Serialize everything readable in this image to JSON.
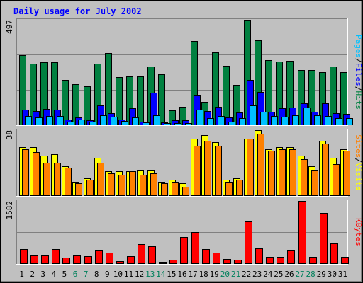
{
  "chart_data": [
    {
      "type": "bar",
      "title": "Daily usage for July 2002",
      "days": [
        "1",
        "2",
        "3",
        "4",
        "5",
        "6",
        "7",
        "8",
        "9",
        "10",
        "11",
        "12",
        "13",
        "14",
        "15",
        "16",
        "17",
        "18",
        "19",
        "20",
        "21",
        "22",
        "23",
        "24",
        "25",
        "26",
        "27",
        "28",
        "29",
        "30",
        "31"
      ],
      "weekend_days": [
        "6",
        "7",
        "13",
        "14",
        "20",
        "21",
        "27",
        "28"
      ],
      "ymax_label": "497",
      "ylim": [
        0,
        497
      ],
      "legend": [
        "Pages",
        "Files",
        "Hits"
      ],
      "legend_separator": "/",
      "series": [
        {
          "name": "Hits",
          "color": "#008040",
          "values": [
            330,
            290,
            295,
            296,
            210,
            190,
            180,
            290,
            338,
            225,
            228,
            230,
            275,
            238,
            68,
            85,
            395,
            108,
            342,
            280,
            188,
            497,
            400,
            305,
            300,
            302,
            257,
            257,
            248,
            275,
            250
          ]
        },
        {
          "name": "Files",
          "color": "#0000ff",
          "values": [
            70,
            65,
            75,
            70,
            25,
            35,
            20,
            90,
            55,
            22,
            76,
            15,
            150,
            10,
            20,
            20,
            140,
            65,
            85,
            35,
            58,
            210,
            155,
            62,
            77,
            82,
            100,
            60,
            100,
            55,
            50
          ]
        },
        {
          "name": "Pages",
          "color": "#00c0ff",
          "values": [
            40,
            35,
            40,
            40,
            15,
            25,
            15,
            45,
            36,
            18,
            32,
            10,
            43,
            6,
            8,
            6,
            70,
            30,
            40,
            15,
            30,
            90,
            60,
            40,
            38,
            45,
            80,
            45,
            40,
            30,
            30
          ]
        }
      ]
    },
    {
      "type": "bar",
      "ymax_label": "38",
      "ylim": [
        0,
        38
      ],
      "legend": [
        "Sites",
        "Visits"
      ],
      "legend_separator": "/",
      "series": [
        {
          "name": "Visits",
          "color": "#ffff00",
          "values": [
            28,
            28,
            23,
            24,
            17,
            8,
            10,
            22,
            14,
            14,
            14,
            15,
            15,
            8,
            9,
            7,
            33,
            35,
            31,
            9,
            10,
            33,
            38,
            27,
            28,
            28,
            23,
            17,
            32,
            22,
            27
          ]
        },
        {
          "name": "Sites",
          "color": "#ff8000",
          "values": [
            27,
            25,
            19,
            19,
            16,
            7,
            9,
            19,
            13,
            12,
            14,
            12,
            13,
            7,
            8,
            5,
            29,
            32,
            29,
            8,
            9,
            33,
            36,
            26,
            27,
            27,
            21,
            15,
            30,
            18,
            26
          ]
        }
      ]
    },
    {
      "type": "bar",
      "ymax_label": "1582",
      "ylim": [
        0,
        1582
      ],
      "legend": [
        "KBytes"
      ],
      "legend_separator": "",
      "series": [
        {
          "name": "KBytes",
          "color": "#ff0000",
          "values": [
            366,
            197,
            205,
            366,
            150,
            201,
            185,
            326,
            266,
            60,
            185,
            488,
            424,
            17,
            84,
            669,
            788,
            362,
            263,
            101,
            82,
            1062,
            369,
            157,
            157,
            323,
            1582,
            170,
            1282,
            504,
            170
          ]
        }
      ]
    }
  ]
}
